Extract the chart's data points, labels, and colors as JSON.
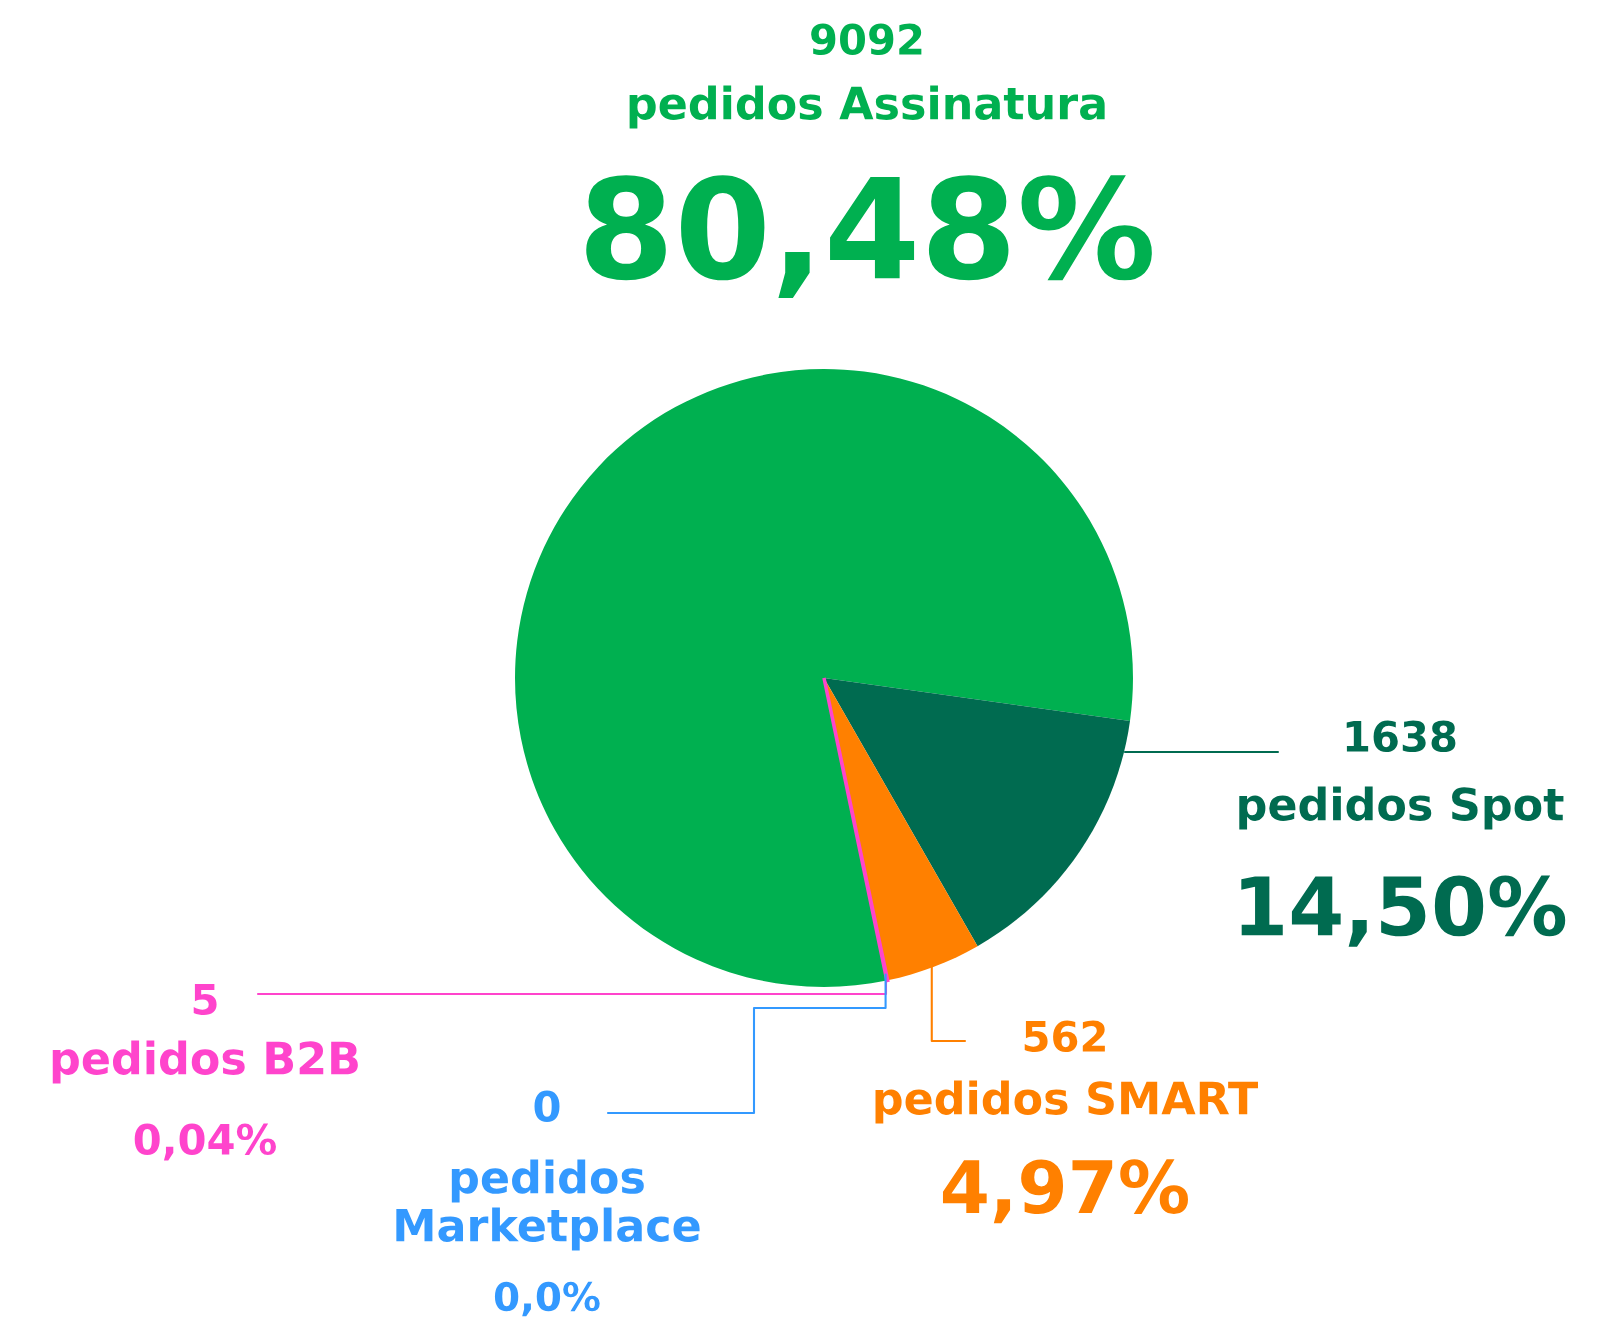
{
  "chart_data": {
    "type": "pie",
    "categories": [
      "pedidos Assinatura",
      "pedidos Spot",
      "pedidos SMART",
      "pedidos B2B",
      "pedidos Marketplace"
    ],
    "values": [
      9092,
      1638,
      562,
      5,
      0
    ],
    "colors": [
      "#00b050",
      "#006b50",
      "#ff8000",
      "#ff44cc",
      "#3399ff"
    ],
    "value_labels": [
      "9092",
      "1638",
      "562",
      "5",
      "0"
    ],
    "annotations": [
      {
        "text": "80,48%",
        "x": "pedidos Assinatura"
      },
      {
        "text": "14,50%",
        "x": "pedidos Spot"
      },
      {
        "text": "4,97%",
        "x": "pedidos SMART"
      },
      {
        "text": "0,04%",
        "x": "pedidos B2B"
      },
      {
        "text": "0,0%",
        "x": "pedidos Marketplace"
      }
    ]
  }
}
